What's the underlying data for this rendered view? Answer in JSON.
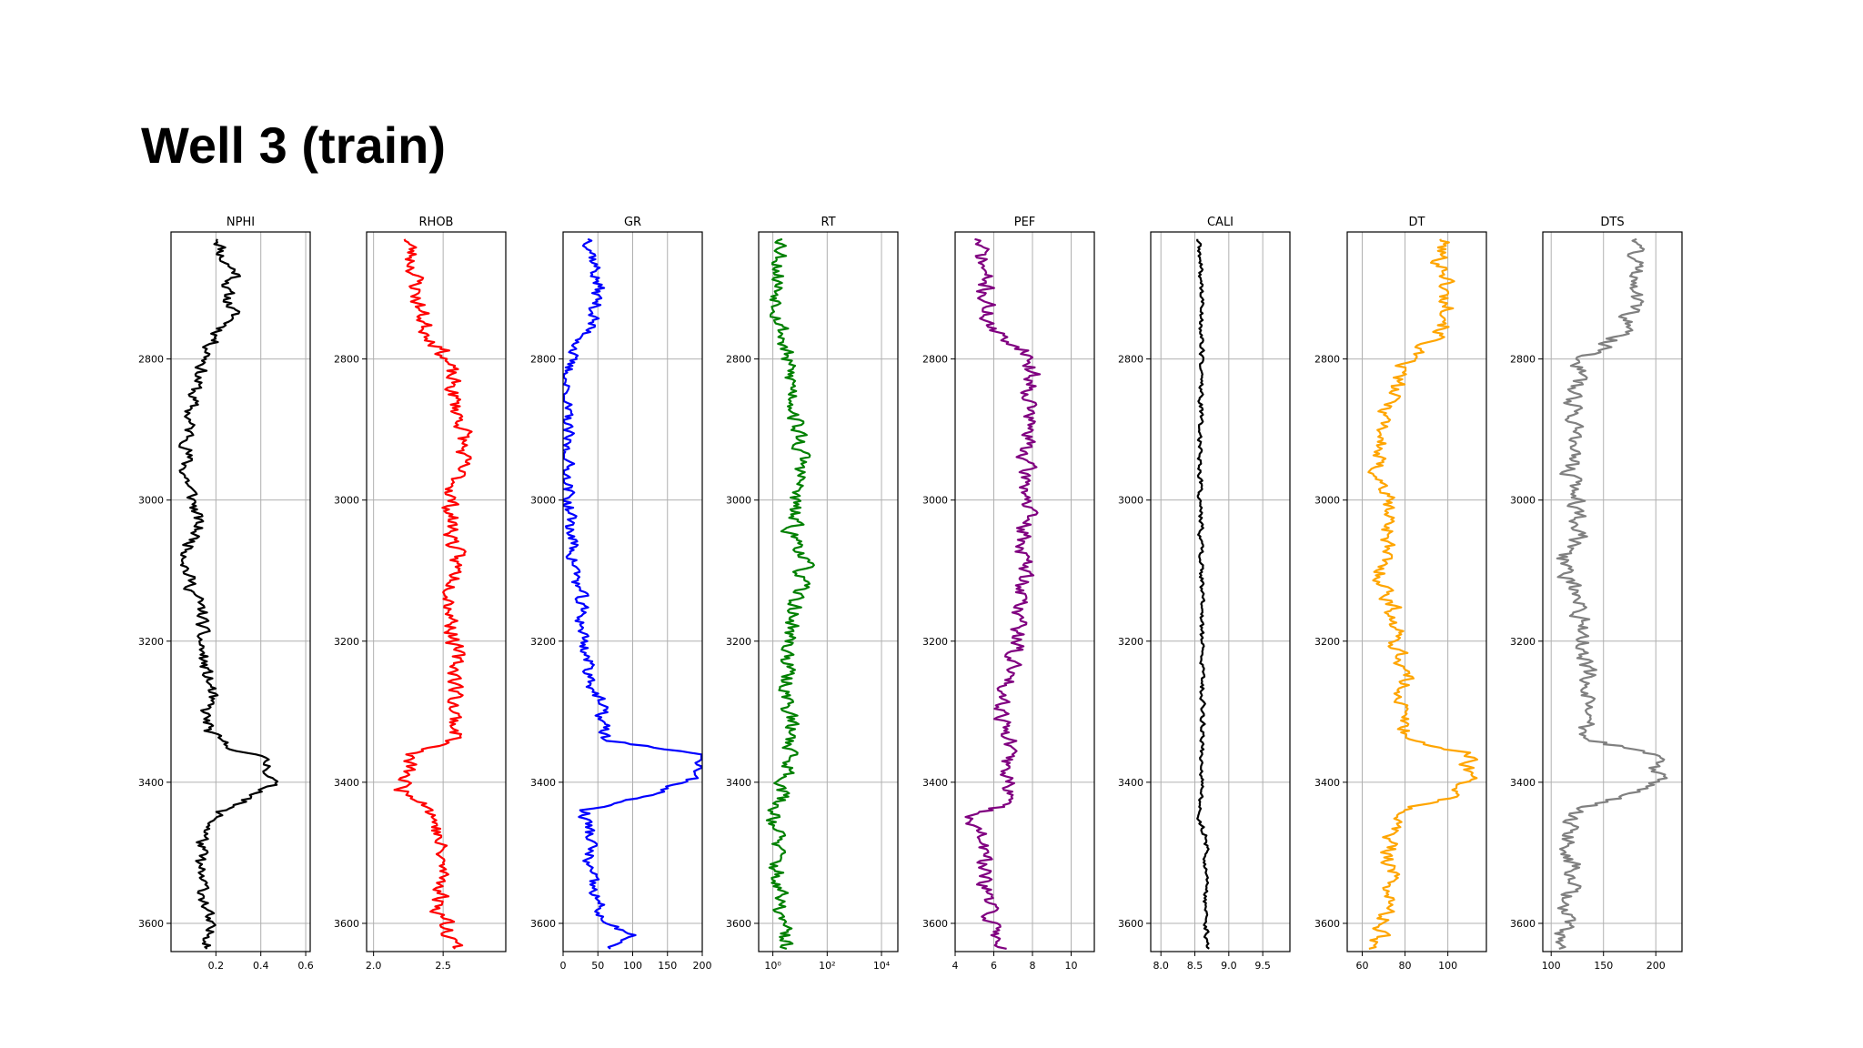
{
  "slide": {
    "title": "Well 3 (train)"
  },
  "colors": {
    "NPHI": "#000000",
    "RHOB": "#ff0000",
    "GR": "#0000ff",
    "RT": "#008000",
    "PEF": "#800080",
    "CALI": "#000000",
    "DT": "#ffa500",
    "DTS": "#808080",
    "grid": "#b0b0b0",
    "frame": "#000000"
  },
  "chart_data": [
    {
      "type": "line",
      "title": "NPHI",
      "depth_range": [
        2620,
        3640
      ],
      "depth_ticks": [
        2800,
        3000,
        3200,
        3400,
        3600
      ],
      "xlim": [
        0.0,
        0.62
      ],
      "x_scale": "linear",
      "x_ticks": [
        {
          "v": 0.2,
          "label": "0.2"
        },
        {
          "v": 0.4,
          "label": "0.4"
        },
        {
          "v": 0.6,
          "label": "0.6"
        }
      ],
      "profile": [
        [
          2630,
          0.22
        ],
        [
          2660,
          0.23
        ],
        [
          2680,
          0.3
        ],
        [
          2700,
          0.24
        ],
        [
          2720,
          0.26
        ],
        [
          2740,
          0.28
        ],
        [
          2760,
          0.22
        ],
        [
          2780,
          0.18
        ],
        [
          2800,
          0.16
        ],
        [
          2820,
          0.13
        ],
        [
          2850,
          0.1
        ],
        [
          2880,
          0.08
        ],
        [
          2920,
          0.08
        ],
        [
          2960,
          0.06
        ],
        [
          3000,
          0.1
        ],
        [
          3040,
          0.12
        ],
        [
          3070,
          0.08
        ],
        [
          3100,
          0.07
        ],
        [
          3130,
          0.1
        ],
        [
          3160,
          0.14
        ],
        [
          3200,
          0.13
        ],
        [
          3240,
          0.15
        ],
        [
          3270,
          0.18
        ],
        [
          3300,
          0.15
        ],
        [
          3330,
          0.17
        ],
        [
          3350,
          0.25
        ],
        [
          3360,
          0.38
        ],
        [
          3380,
          0.44
        ],
        [
          3400,
          0.45
        ],
        [
          3420,
          0.38
        ],
        [
          3440,
          0.22
        ],
        [
          3480,
          0.14
        ],
        [
          3520,
          0.12
        ],
        [
          3560,
          0.15
        ],
        [
          3600,
          0.16
        ],
        [
          3635,
          0.18
        ]
      ],
      "noise": 0.03,
      "seed": 11
    },
    {
      "type": "line",
      "title": "RHOB",
      "depth_range": [
        2620,
        3640
      ],
      "depth_ticks": [
        2800,
        3000,
        3200,
        3400,
        3600
      ],
      "xlim": [
        1.95,
        2.95
      ],
      "x_scale": "linear",
      "x_ticks": [
        {
          "v": 2.0,
          "label": "2.0"
        },
        {
          "v": 2.5,
          "label": "2.5"
        }
      ],
      "profile": [
        [
          2630,
          2.25
        ],
        [
          2680,
          2.3
        ],
        [
          2720,
          2.32
        ],
        [
          2760,
          2.38
        ],
        [
          2790,
          2.5
        ],
        [
          2820,
          2.55
        ],
        [
          2860,
          2.58
        ],
        [
          2900,
          2.65
        ],
        [
          2950,
          2.63
        ],
        [
          3000,
          2.55
        ],
        [
          3050,
          2.57
        ],
        [
          3100,
          2.6
        ],
        [
          3150,
          2.56
        ],
        [
          3200,
          2.58
        ],
        [
          3250,
          2.6
        ],
        [
          3300,
          2.58
        ],
        [
          3340,
          2.6
        ],
        [
          3360,
          2.25
        ],
        [
          3380,
          2.25
        ],
        [
          3410,
          2.2
        ],
        [
          3430,
          2.4
        ],
        [
          3460,
          2.45
        ],
        [
          3500,
          2.48
        ],
        [
          3540,
          2.5
        ],
        [
          3580,
          2.47
        ],
        [
          3610,
          2.55
        ],
        [
          3635,
          2.6
        ]
      ],
      "noise": 0.06,
      "seed": 23
    },
    {
      "type": "line",
      "title": "GR",
      "depth_range": [
        2620,
        3640
      ],
      "depth_ticks": [
        2800,
        3000,
        3200,
        3400,
        3600
      ],
      "xlim": [
        0,
        200
      ],
      "x_scale": "linear",
      "x_ticks": [
        {
          "v": 0,
          "label": "0"
        },
        {
          "v": 50,
          "label": "50"
        },
        {
          "v": 100,
          "label": "100"
        },
        {
          "v": 150,
          "label": "150"
        },
        {
          "v": 200,
          "label": "200"
        }
      ],
      "profile": [
        [
          2630,
          40
        ],
        [
          2660,
          45
        ],
        [
          2700,
          50
        ],
        [
          2740,
          45
        ],
        [
          2770,
          30
        ],
        [
          2800,
          8
        ],
        [
          2850,
          3
        ],
        [
          2900,
          4
        ],
        [
          2950,
          5
        ],
        [
          3000,
          8
        ],
        [
          3050,
          12
        ],
        [
          3100,
          18
        ],
        [
          3150,
          25
        ],
        [
          3200,
          30
        ],
        [
          3250,
          40
        ],
        [
          3300,
          55
        ],
        [
          3340,
          60
        ],
        [
          3360,
          195
        ],
        [
          3380,
          200
        ],
        [
          3400,
          175
        ],
        [
          3420,
          120
        ],
        [
          3440,
          30
        ],
        [
          3480,
          40
        ],
        [
          3520,
          35
        ],
        [
          3560,
          45
        ],
        [
          3600,
          60
        ],
        [
          3620,
          100
        ],
        [
          3635,
          60
        ]
      ],
      "noise": 10,
      "seed": 37
    },
    {
      "type": "line",
      "title": "RT",
      "depth_range": [
        2620,
        3640
      ],
      "depth_ticks": [
        2800,
        3000,
        3200,
        3400,
        3600
      ],
      "xlim": [
        0.3,
        40000
      ],
      "x_scale": "log",
      "x_ticks": [
        {
          "v": 1,
          "label": "10⁰"
        },
        {
          "v": 100,
          "label": "10²"
        },
        {
          "v": 10000,
          "label": "10⁴"
        }
      ],
      "profile": [
        [
          2630,
          3
        ],
        [
          2650,
          2
        ],
        [
          2700,
          1.5
        ],
        [
          2750,
          2
        ],
        [
          2800,
          3
        ],
        [
          2850,
          6
        ],
        [
          2900,
          8
        ],
        [
          2950,
          12
        ],
        [
          3000,
          6
        ],
        [
          3050,
          5
        ],
        [
          3080,
          15
        ],
        [
          3100,
          12
        ],
        [
          3150,
          6
        ],
        [
          3200,
          4
        ],
        [
          3250,
          3
        ],
        [
          3300,
          4
        ],
        [
          3350,
          5
        ],
        [
          3400,
          3
        ],
        [
          3420,
          2
        ],
        [
          3440,
          1.2
        ],
        [
          3480,
          1.5
        ],
        [
          3520,
          1.3
        ],
        [
          3560,
          1.6
        ],
        [
          3600,
          2
        ],
        [
          3635,
          3
        ]
      ],
      "noise": 0.25,
      "noise_log": true,
      "seed": 53
    },
    {
      "type": "line",
      "title": "PEF",
      "depth_range": [
        2620,
        3640
      ],
      "depth_ticks": [
        2800,
        3000,
        3200,
        3400,
        3600
      ],
      "xlim": [
        4,
        11.2
      ],
      "x_scale": "linear",
      "x_ticks": [
        {
          "v": 4,
          "label": "4"
        },
        {
          "v": 6,
          "label": "6"
        },
        {
          "v": 8,
          "label": "8"
        },
        {
          "v": 10,
          "label": "10"
        }
      ],
      "profile": [
        [
          2630,
          5.2
        ],
        [
          2680,
          5.5
        ],
        [
          2720,
          5.6
        ],
        [
          2760,
          5.8
        ],
        [
          2790,
          7.8
        ],
        [
          2830,
          8.0
        ],
        [
          2900,
          7.8
        ],
        [
          2950,
          7.6
        ],
        [
          3000,
          7.8
        ],
        [
          3050,
          7.5
        ],
        [
          3100,
          7.6
        ],
        [
          3150,
          7.4
        ],
        [
          3200,
          7.2
        ],
        [
          3250,
          6.8
        ],
        [
          3300,
          6.5
        ],
        [
          3340,
          6.8
        ],
        [
          3380,
          6.6
        ],
        [
          3420,
          7.0
        ],
        [
          3450,
          5.0
        ],
        [
          3500,
          5.5
        ],
        [
          3540,
          5.4
        ],
        [
          3580,
          5.8
        ],
        [
          3610,
          6.0
        ],
        [
          3635,
          6.5
        ]
      ],
      "noise": 0.45,
      "seed": 71
    },
    {
      "type": "line",
      "title": "CALI",
      "depth_range": [
        2620,
        3640
      ],
      "depth_ticks": [
        2800,
        3000,
        3200,
        3400,
        3600
      ],
      "xlim": [
        7.85,
        9.9
      ],
      "x_scale": "linear",
      "x_ticks": [
        {
          "v": 8.0,
          "label": "8.0"
        },
        {
          "v": 8.5,
          "label": "8.5"
        },
        {
          "v": 9.0,
          "label": "9.0"
        },
        {
          "v": 9.5,
          "label": "9.5"
        }
      ],
      "profile": [
        [
          2630,
          8.55
        ],
        [
          2700,
          8.6
        ],
        [
          2800,
          8.6
        ],
        [
          2900,
          8.58
        ],
        [
          3000,
          8.58
        ],
        [
          3100,
          8.6
        ],
        [
          3200,
          8.6
        ],
        [
          3300,
          8.62
        ],
        [
          3400,
          8.6
        ],
        [
          3450,
          8.55
        ],
        [
          3480,
          8.68
        ],
        [
          3550,
          8.65
        ],
        [
          3635,
          8.68
        ]
      ],
      "noise": 0.035,
      "seed": 89
    },
    {
      "type": "line",
      "title": "DT",
      "depth_range": [
        2620,
        3640
      ],
      "depth_ticks": [
        2800,
        3000,
        3200,
        3400,
        3600
      ],
      "xlim": [
        53,
        118
      ],
      "x_scale": "linear",
      "x_ticks": [
        {
          "v": 60,
          "label": "60"
        },
        {
          "v": 80,
          "label": "80"
        },
        {
          "v": 100,
          "label": "100"
        }
      ],
      "profile": [
        [
          2630,
          98
        ],
        [
          2660,
          96
        ],
        [
          2680,
          100
        ],
        [
          2710,
          98
        ],
        [
          2740,
          102
        ],
        [
          2770,
          95
        ],
        [
          2800,
          80
        ],
        [
          2850,
          74
        ],
        [
          2900,
          70
        ],
        [
          2950,
          66
        ],
        [
          3000,
          72
        ],
        [
          3050,
          73
        ],
        [
          3100,
          68
        ],
        [
          3150,
          74
        ],
        [
          3200,
          76
        ],
        [
          3250,
          80
        ],
        [
          3300,
          78
        ],
        [
          3340,
          82
        ],
        [
          3360,
          110
        ],
        [
          3400,
          110
        ],
        [
          3420,
          100
        ],
        [
          3440,
          80
        ],
        [
          3480,
          72
        ],
        [
          3520,
          74
        ],
        [
          3560,
          73
        ],
        [
          3600,
          70
        ],
        [
          3635,
          66
        ]
      ],
      "noise": 4,
      "seed": 101
    },
    {
      "type": "line",
      "title": "DTS",
      "depth_range": [
        2620,
        3640
      ],
      "depth_ticks": [
        2800,
        3000,
        3200,
        3400,
        3600
      ],
      "xlim": [
        92,
        225
      ],
      "x_scale": "linear",
      "x_ticks": [
        {
          "v": 100,
          "label": "100"
        },
        {
          "v": 150,
          "label": "150"
        },
        {
          "v": 200,
          "label": "200"
        }
      ],
      "profile": [
        [
          2630,
          185
        ],
        [
          2660,
          180
        ],
        [
          2700,
          185
        ],
        [
          2740,
          175
        ],
        [
          2770,
          165
        ],
        [
          2800,
          130
        ],
        [
          2850,
          120
        ],
        [
          2900,
          125
        ],
        [
          2950,
          118
        ],
        [
          3000,
          125
        ],
        [
          3050,
          128
        ],
        [
          3080,
          110
        ],
        [
          3100,
          115
        ],
        [
          3150,
          128
        ],
        [
          3200,
          132
        ],
        [
          3250,
          135
        ],
        [
          3300,
          130
        ],
        [
          3340,
          135
        ],
        [
          3360,
          200
        ],
        [
          3400,
          200
        ],
        [
          3420,
          170
        ],
        [
          3440,
          120
        ],
        [
          3480,
          115
        ],
        [
          3520,
          120
        ],
        [
          3560,
          118
        ],
        [
          3600,
          112
        ],
        [
          3635,
          108
        ]
      ],
      "noise": 9,
      "seed": 131
    }
  ]
}
